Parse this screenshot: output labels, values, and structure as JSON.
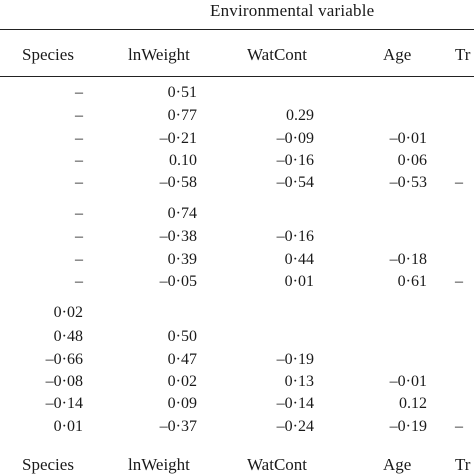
{
  "table": {
    "group_header": "Environmental variable",
    "columns": [
      "Species",
      "lnWeight",
      "WatCont",
      "Age",
      "Tr"
    ],
    "footer_columns": [
      "Species",
      "lnWeight",
      "WatCont",
      "Age",
      "Tr"
    ],
    "rows": [
      [
        "–",
        "0·51",
        "",
        "",
        ""
      ],
      [
        "–",
        "0·77",
        "0.29",
        "",
        ""
      ],
      [
        "–",
        "–0·21",
        "–0·09",
        "–0·01",
        ""
      ],
      [
        "–",
        "0.10",
        "–0·16",
        "0·06",
        ""
      ],
      [
        "–",
        "–0·58",
        "–0·54",
        "–0·53",
        "–"
      ],
      [
        "–",
        "0·74",
        "",
        "",
        ""
      ],
      [
        "–",
        "–0·38",
        "–0·16",
        "",
        ""
      ],
      [
        "–",
        "0·39",
        "0·44",
        "–0·18",
        ""
      ],
      [
        "–",
        "–0·05",
        "0·01",
        "0·61",
        "–"
      ],
      [
        "0·02",
        "",
        "",
        "",
        ""
      ],
      [
        "0·48",
        "0·50",
        "",
        "",
        ""
      ],
      [
        "–0·66",
        "0·47",
        "–0·19",
        "",
        ""
      ],
      [
        "–0·08",
        "0·02",
        "0·13",
        "–0·01",
        ""
      ],
      [
        "–0·14",
        "0·09",
        "–0·14",
        "0.12",
        ""
      ],
      [
        "0·01",
        "–0·37",
        "–0·24",
        "–0·19",
        "–"
      ]
    ]
  }
}
